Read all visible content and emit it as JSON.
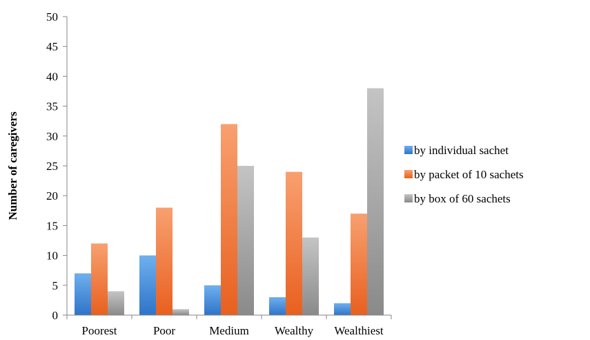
{
  "chart_data": {
    "type": "bar",
    "title": "",
    "xlabel": "",
    "ylabel": "Number of caregivers",
    "ylim": [
      0,
      50
    ],
    "yticks": [
      0,
      5,
      10,
      15,
      20,
      25,
      30,
      35,
      40,
      45,
      50
    ],
    "categories": [
      "Poorest",
      "Poor",
      "Medium",
      "Wealthy",
      "Wealthiest"
    ],
    "series": [
      {
        "name": "by individual sachet",
        "values": [
          7,
          10,
          5,
          3,
          2
        ],
        "color": "#4a8fdb"
      },
      {
        "name": "by packet of 10 sachets",
        "values": [
          12,
          18,
          32,
          24,
          17
        ],
        "color": "#f07b3b"
      },
      {
        "name": "by box of 60 sachets",
        "values": [
          4,
          1,
          25,
          13,
          38
        ],
        "color": "#a5a5a5"
      }
    ],
    "grid": false,
    "legend_position": "right"
  }
}
